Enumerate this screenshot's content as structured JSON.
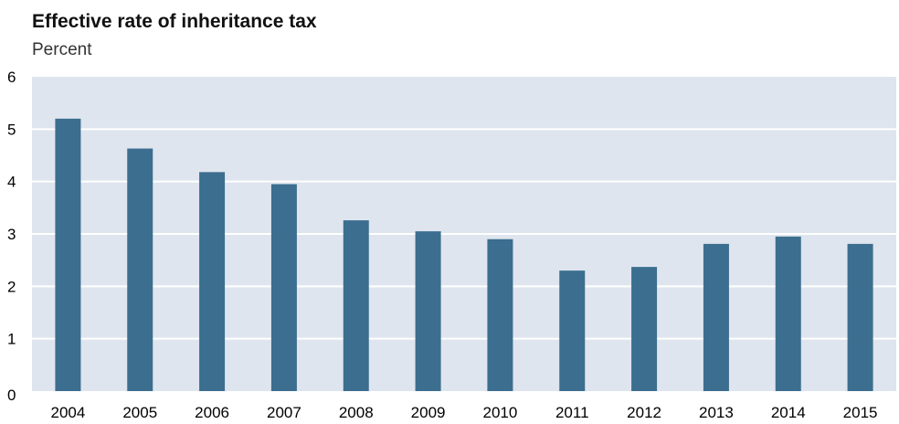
{
  "chart_data": {
    "type": "bar",
    "title": "Effective rate of inheritance tax",
    "subtitle": "Percent",
    "xlabel": "",
    "ylabel": "",
    "categories": [
      "2004",
      "2005",
      "2006",
      "2007",
      "2008",
      "2009",
      "2010",
      "2011",
      "2012",
      "2013",
      "2014",
      "2015"
    ],
    "values": [
      5.2,
      4.63,
      4.18,
      3.95,
      3.26,
      3.05,
      2.9,
      2.3,
      2.37,
      2.81,
      2.95,
      2.81
    ],
    "ylim": [
      0,
      6
    ],
    "yticks": [
      "0",
      "1",
      "2",
      "3",
      "4",
      "5",
      "6"
    ],
    "grid": true,
    "colors": {
      "bar": "#3b6e8f",
      "plot_bg": "#dfe5ee",
      "grid": "#ffffff"
    }
  }
}
